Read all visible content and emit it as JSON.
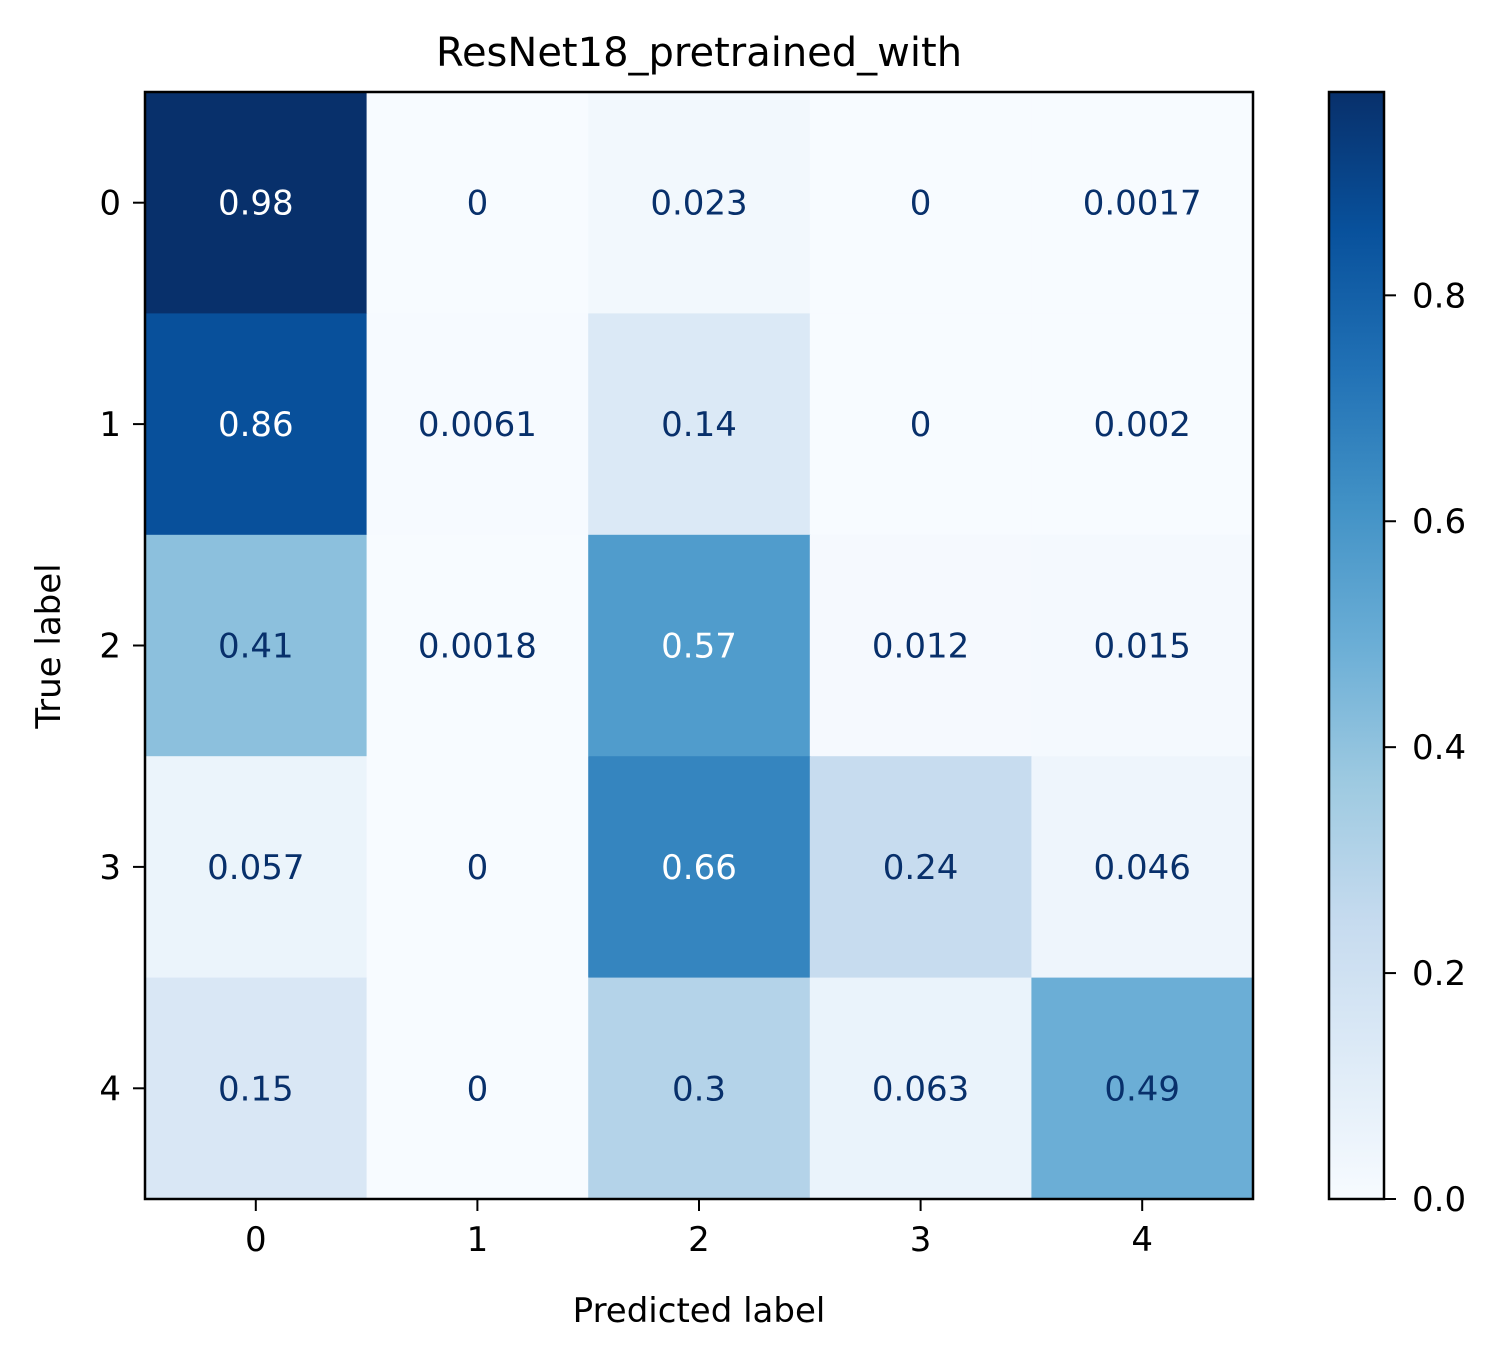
{
  "chart_data": {
    "type": "heatmap",
    "title": "ResNet18_pretrained_with",
    "xlabel": "Predicted label",
    "ylabel": "True label",
    "x_categories": [
      "0",
      "1",
      "2",
      "3",
      "4"
    ],
    "y_categories": [
      "0",
      "1",
      "2",
      "3",
      "4"
    ],
    "values": [
      [
        0.98,
        0,
        0.023,
        0,
        0.0017
      ],
      [
        0.86,
        0.0061,
        0.14,
        0,
        0.002
      ],
      [
        0.41,
        0.0018,
        0.57,
        0.012,
        0.015
      ],
      [
        0.057,
        0,
        0.66,
        0.24,
        0.046
      ],
      [
        0.15,
        0,
        0.3,
        0.063,
        0.49
      ]
    ],
    "cell_labels": [
      [
        "0.98",
        "0",
        "0.023",
        "0",
        "0.0017"
      ],
      [
        "0.86",
        "0.0061",
        "0.14",
        "0",
        "0.002"
      ],
      [
        "0.41",
        "0.0018",
        "0.57",
        "0.012",
        "0.015"
      ],
      [
        "0.057",
        "0",
        "0.66",
        "0.24",
        "0.046"
      ],
      [
        "0.15",
        "0",
        "0.3",
        "0.063",
        "0.49"
      ]
    ],
    "colormap": "Blues",
    "colorbar": {
      "range": [
        0,
        0.98
      ],
      "ticks": [
        0,
        0.2,
        0.4,
        0.6,
        0.8
      ],
      "tick_labels": [
        "0.0",
        "0.2",
        "0.4",
        "0.6",
        "0.8"
      ]
    },
    "label_colors": {
      "light": "#ffffff",
      "dark": "#08306b"
    }
  }
}
